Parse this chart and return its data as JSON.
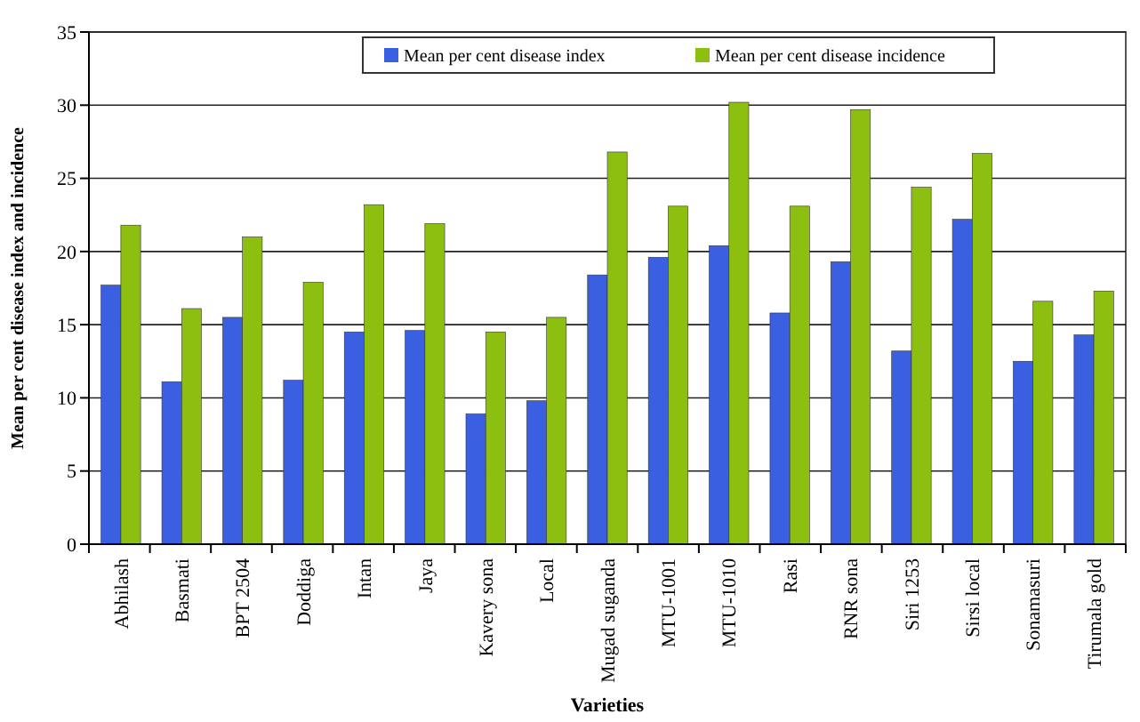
{
  "chart_data": {
    "type": "bar",
    "xlabel": "Varieties",
    "ylabel": "Mean per cent disease index and incidence",
    "categories": [
      "Abhilash",
      "Basmati",
      "BPT 2504",
      "Doddiga",
      "Intan",
      "Jaya",
      "Kavery sona",
      "Local",
      "Mugad suganda",
      "MTU-1001",
      "MTU-1010",
      "Rasi",
      "RNR sona",
      "Siri 1253",
      "Sirsi local",
      "Sonamasuri",
      "Tirumala gold"
    ],
    "series": [
      {
        "name": "Mean per cent disease index",
        "color": "#3a5fe0",
        "values": [
          17.7,
          11.1,
          15.5,
          11.2,
          14.5,
          14.6,
          8.9,
          9.8,
          18.4,
          19.6,
          20.4,
          15.8,
          19.3,
          13.2,
          22.2,
          12.5,
          14.3
        ]
      },
      {
        "name": "Mean per cent disease incidence",
        "color": "#8cbf10",
        "values": [
          21.8,
          16.1,
          21,
          17.9,
          23.2,
          21.9,
          14.5,
          15.5,
          26.8,
          23.1,
          30.2,
          23.1,
          29.7,
          24.4,
          26.7,
          16.6,
          17.3
        ]
      }
    ],
    "ylim": [
      0,
      35
    ],
    "yticks": [
      0,
      5,
      10,
      15,
      20,
      25,
      30,
      35
    ],
    "grid": "y",
    "legend": "top"
  }
}
